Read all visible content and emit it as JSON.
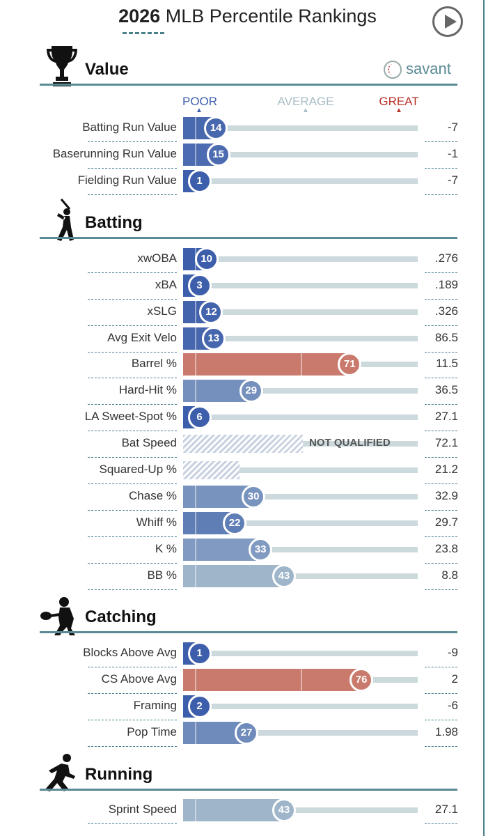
{
  "header": {
    "year": "2026",
    "title": "MLB Percentile Rankings"
  },
  "brand": "savant",
  "levels": {
    "poor": "POOR",
    "average": "AVERAGE",
    "great": "GREAT"
  },
  "colors": {
    "poor": "#3d5eab",
    "average": "#b3c7d1",
    "great": "#c97a6c",
    "accent": "#4a7f8c"
  },
  "sections": {
    "value": {
      "title": "Value",
      "icon": "trophy-icon"
    },
    "batting": {
      "title": "Batting",
      "icon": "batter-icon"
    },
    "catching": {
      "title": "Catching",
      "icon": "catcher-icon"
    },
    "running": {
      "title": "Running",
      "icon": "runner-icon"
    }
  },
  "chart_data": {
    "type": "bar",
    "title": "2026 MLB Percentile Rankings",
    "xlim": [
      0,
      100
    ],
    "rows": [
      {
        "section": "value",
        "label": "Batting Run Value",
        "percentile": 14,
        "value": "-7"
      },
      {
        "section": "value",
        "label": "Baserunning Run Value",
        "percentile": 15,
        "value": "-1"
      },
      {
        "section": "value",
        "label": "Fielding Run Value",
        "percentile": 1,
        "value": "-7"
      },
      {
        "section": "batting",
        "label": "xwOBA",
        "percentile": 10,
        "value": ".276"
      },
      {
        "section": "batting",
        "label": "xBA",
        "percentile": 3,
        "value": ".189"
      },
      {
        "section": "batting",
        "label": "xSLG",
        "percentile": 12,
        "value": ".326"
      },
      {
        "section": "batting",
        "label": "Avg Exit Velo",
        "percentile": 13,
        "value": "86.5"
      },
      {
        "section": "batting",
        "label": "Barrel %",
        "percentile": 71,
        "value": "11.5"
      },
      {
        "section": "batting",
        "label": "Hard-Hit %",
        "percentile": 29,
        "value": "36.5"
      },
      {
        "section": "batting",
        "label": "LA Sweet-Spot %",
        "percentile": 6,
        "value": "27.1"
      },
      {
        "section": "batting",
        "label": "Bat Speed",
        "percentile": null,
        "value": "72.1",
        "note": "NOT QUALIFIED",
        "hatch": 0.51
      },
      {
        "section": "batting",
        "label": "Squared-Up %",
        "percentile": null,
        "value": "21.2",
        "hatch": 0.24
      },
      {
        "section": "batting",
        "label": "Chase %",
        "percentile": 30,
        "value": "32.9"
      },
      {
        "section": "batting",
        "label": "Whiff %",
        "percentile": 22,
        "value": "29.7"
      },
      {
        "section": "batting",
        "label": "K %",
        "percentile": 33,
        "value": "23.8"
      },
      {
        "section": "batting",
        "label": "BB %",
        "percentile": 43,
        "value": "8.8"
      },
      {
        "section": "catching",
        "label": "Blocks Above Avg",
        "percentile": 1,
        "value": "-9"
      },
      {
        "section": "catching",
        "label": "CS Above Avg",
        "percentile": 76,
        "value": "2"
      },
      {
        "section": "catching",
        "label": "Framing",
        "percentile": 2,
        "value": "-6"
      },
      {
        "section": "catching",
        "label": "Pop Time",
        "percentile": 27,
        "value": "1.98"
      },
      {
        "section": "running",
        "label": "Sprint Speed",
        "percentile": 43,
        "value": "27.1"
      }
    ]
  }
}
